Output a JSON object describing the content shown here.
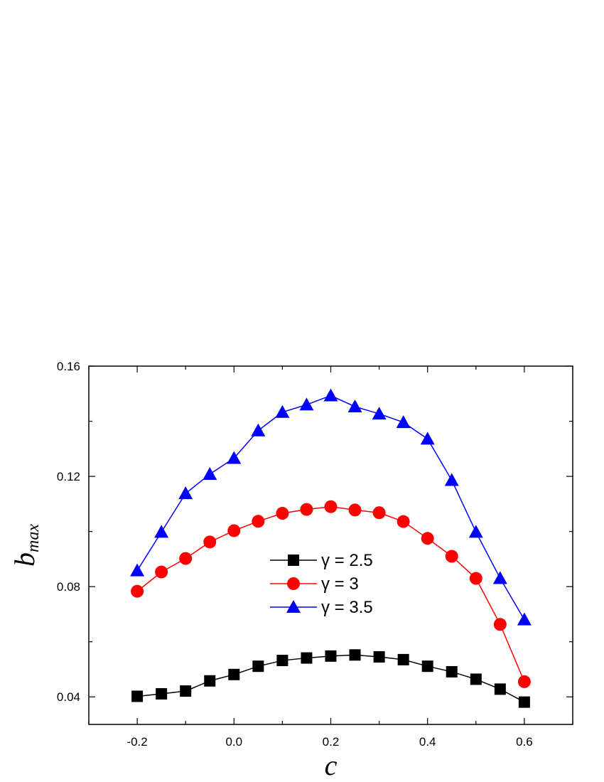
{
  "chart_data": {
    "type": "line",
    "xlabel": "c",
    "ylabel": {
      "main": "b",
      "sub": "max"
    },
    "xlim": [
      -0.3,
      0.7
    ],
    "ylim": [
      0.03,
      0.16
    ],
    "xticks": [
      -0.2,
      0.0,
      0.2,
      0.4,
      0.6
    ],
    "xtick_labels": [
      "-0.2",
      "0.0",
      "0.2",
      "0.4",
      "0.6"
    ],
    "yticks": [
      0.04,
      0.08,
      0.12,
      0.16
    ],
    "ytick_labels": [
      "0.04",
      "0.08",
      "0.12",
      "0.16"
    ],
    "grid": false,
    "legend_position": "center",
    "x": [
      -0.2,
      -0.15,
      -0.1,
      -0.05,
      0.0,
      0.05,
      0.1,
      0.15,
      0.2,
      0.25,
      0.3,
      0.35,
      0.4,
      0.45,
      0.5,
      0.55,
      0.6
    ],
    "series": [
      {
        "name": "γ = 2.5",
        "color": "#000000",
        "marker": "square",
        "values": [
          0.0402,
          0.0411,
          0.0421,
          0.0458,
          0.0481,
          0.0511,
          0.0532,
          0.0541,
          0.0548,
          0.0552,
          0.0545,
          0.0535,
          0.0511,
          0.0491,
          0.0464,
          0.0428,
          0.0381
        ]
      },
      {
        "name": "γ = 3",
        "color": "#ff0000",
        "marker": "circle",
        "values": [
          0.0783,
          0.0853,
          0.0902,
          0.0962,
          0.1003,
          0.1037,
          0.1066,
          0.108,
          0.109,
          0.1078,
          0.1068,
          0.1036,
          0.0975,
          0.091,
          0.083,
          0.0663,
          0.0455
        ]
      },
      {
        "name": "γ = 3.5",
        "color": "#0000ff",
        "marker": "triangle",
        "values": [
          0.0858,
          0.0998,
          0.1138,
          0.1208,
          0.1266,
          0.1366,
          0.1433,
          0.146,
          0.1493,
          0.1453,
          0.1427,
          0.1396,
          0.1336,
          0.1186,
          0.0998,
          0.083,
          0.068
        ]
      }
    ]
  }
}
